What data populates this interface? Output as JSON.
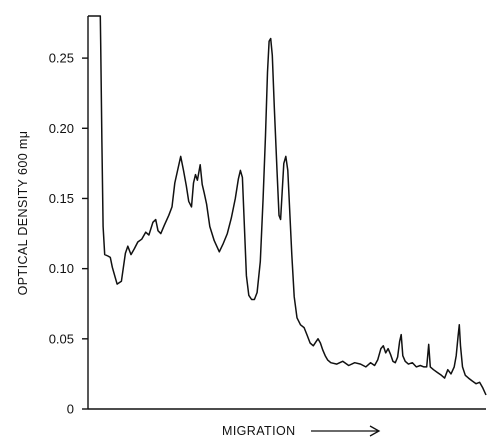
{
  "chart_data": {
    "type": "line",
    "title": "",
    "xlabel": "MIGRATION",
    "xlabel_arrow": "arrow-right-icon",
    "ylabel": "OPTICAL DENSITY 600 mμ",
    "ylim": [
      0,
      0.28
    ],
    "xlim": [
      0,
      100
    ],
    "yticks": [
      0,
      0.05,
      0.1,
      0.15,
      0.2,
      0.25
    ],
    "ytick_labels": [
      "0",
      "0.05",
      "0.10",
      "0.15",
      "0.20",
      "0.25"
    ],
    "grid": false,
    "x_tick_labels_shown": false,
    "series": [
      {
        "color": "#111111",
        "points": [
          [
            0,
            0.28
          ],
          [
            3.1,
            0.28
          ],
          [
            3.2,
            0.26
          ],
          [
            3.5,
            0.19
          ],
          [
            3.8,
            0.13
          ],
          [
            4.2,
            0.11
          ],
          [
            5.0,
            0.109
          ],
          [
            5.6,
            0.108
          ],
          [
            6.1,
            0.101
          ],
          [
            6.8,
            0.094
          ],
          [
            7.3,
            0.089
          ],
          [
            8.4,
            0.091
          ],
          [
            9.4,
            0.111
          ],
          [
            10.0,
            0.116
          ],
          [
            10.8,
            0.11
          ],
          [
            11.6,
            0.114
          ],
          [
            12.5,
            0.119
          ],
          [
            13.5,
            0.121
          ],
          [
            14.5,
            0.126
          ],
          [
            15.3,
            0.124
          ],
          [
            16.3,
            0.133
          ],
          [
            17.0,
            0.135
          ],
          [
            17.6,
            0.127
          ],
          [
            18.3,
            0.125
          ],
          [
            19.2,
            0.131
          ],
          [
            20.3,
            0.138
          ],
          [
            21.1,
            0.144
          ],
          [
            21.8,
            0.161
          ],
          [
            22.6,
            0.171
          ],
          [
            23.3,
            0.18
          ],
          [
            24.0,
            0.17
          ],
          [
            24.7,
            0.159
          ],
          [
            25.3,
            0.148
          ],
          [
            26.0,
            0.144
          ],
          [
            26.5,
            0.161
          ],
          [
            27.0,
            0.167
          ],
          [
            27.5,
            0.163
          ],
          [
            28.2,
            0.174
          ],
          [
            28.7,
            0.16
          ],
          [
            29.2,
            0.154
          ],
          [
            29.8,
            0.146
          ],
          [
            30.6,
            0.13
          ],
          [
            31.7,
            0.12
          ],
          [
            33.0,
            0.112
          ],
          [
            34.0,
            0.118
          ],
          [
            35.0,
            0.125
          ],
          [
            36.0,
            0.136
          ],
          [
            37.0,
            0.15
          ],
          [
            37.8,
            0.164
          ],
          [
            38.3,
            0.17
          ],
          [
            38.8,
            0.165
          ],
          [
            39.3,
            0.13
          ],
          [
            39.8,
            0.095
          ],
          [
            40.4,
            0.081
          ],
          [
            41.1,
            0.078
          ],
          [
            41.8,
            0.078
          ],
          [
            42.5,
            0.083
          ],
          [
            43.3,
            0.105
          ],
          [
            44.0,
            0.15
          ],
          [
            44.6,
            0.195
          ],
          [
            45.1,
            0.24
          ],
          [
            45.5,
            0.262
          ],
          [
            45.9,
            0.264
          ],
          [
            46.3,
            0.252
          ],
          [
            46.8,
            0.215
          ],
          [
            47.5,
            0.17
          ],
          [
            48.0,
            0.138
          ],
          [
            48.4,
            0.135
          ],
          [
            48.8,
            0.155
          ],
          [
            49.2,
            0.175
          ],
          [
            49.7,
            0.18
          ],
          [
            50.2,
            0.17
          ],
          [
            50.7,
            0.14
          ],
          [
            51.2,
            0.11
          ],
          [
            51.8,
            0.08
          ],
          [
            52.5,
            0.065
          ],
          [
            53.4,
            0.06
          ],
          [
            54.3,
            0.058
          ],
          [
            55.0,
            0.053
          ],
          [
            55.8,
            0.047
          ],
          [
            56.6,
            0.045
          ],
          [
            57.3,
            0.048
          ],
          [
            57.8,
            0.05
          ],
          [
            58.4,
            0.047
          ],
          [
            59.0,
            0.042
          ],
          [
            59.6,
            0.038
          ],
          [
            60.2,
            0.035
          ],
          [
            61.0,
            0.033
          ],
          [
            62.5,
            0.032
          ],
          [
            64.0,
            0.034
          ],
          [
            65.5,
            0.031
          ],
          [
            67.0,
            0.033
          ],
          [
            68.5,
            0.032
          ],
          [
            69.8,
            0.03
          ],
          [
            71.0,
            0.033
          ],
          [
            72.0,
            0.031
          ],
          [
            72.8,
            0.035
          ],
          [
            73.6,
            0.043
          ],
          [
            74.2,
            0.045
          ],
          [
            74.8,
            0.04
          ],
          [
            75.4,
            0.043
          ],
          [
            76.0,
            0.039
          ],
          [
            76.6,
            0.034
          ],
          [
            77.2,
            0.033
          ],
          [
            77.8,
            0.037
          ],
          [
            78.3,
            0.048
          ],
          [
            78.7,
            0.053
          ],
          [
            79.1,
            0.038
          ],
          [
            79.7,
            0.034
          ],
          [
            80.5,
            0.032
          ],
          [
            81.5,
            0.033
          ],
          [
            82.5,
            0.03
          ],
          [
            83.5,
            0.031
          ],
          [
            84.4,
            0.03
          ],
          [
            85.1,
            0.03
          ],
          [
            85.6,
            0.046
          ],
          [
            86.0,
            0.03
          ],
          [
            86.8,
            0.028
          ],
          [
            87.8,
            0.026
          ],
          [
            88.8,
            0.024
          ],
          [
            89.6,
            0.022
          ],
          [
            90.4,
            0.028
          ],
          [
            91.2,
            0.025
          ],
          [
            92.0,
            0.03
          ],
          [
            92.5,
            0.038
          ],
          [
            93.0,
            0.052
          ],
          [
            93.3,
            0.06
          ],
          [
            93.6,
            0.045
          ],
          [
            94.1,
            0.03
          ],
          [
            94.8,
            0.024
          ],
          [
            95.6,
            0.022
          ],
          [
            96.5,
            0.02
          ],
          [
            97.5,
            0.018
          ],
          [
            98.4,
            0.019
          ],
          [
            99.2,
            0.015
          ],
          [
            100,
            0.01
          ]
        ]
      }
    ]
  }
}
